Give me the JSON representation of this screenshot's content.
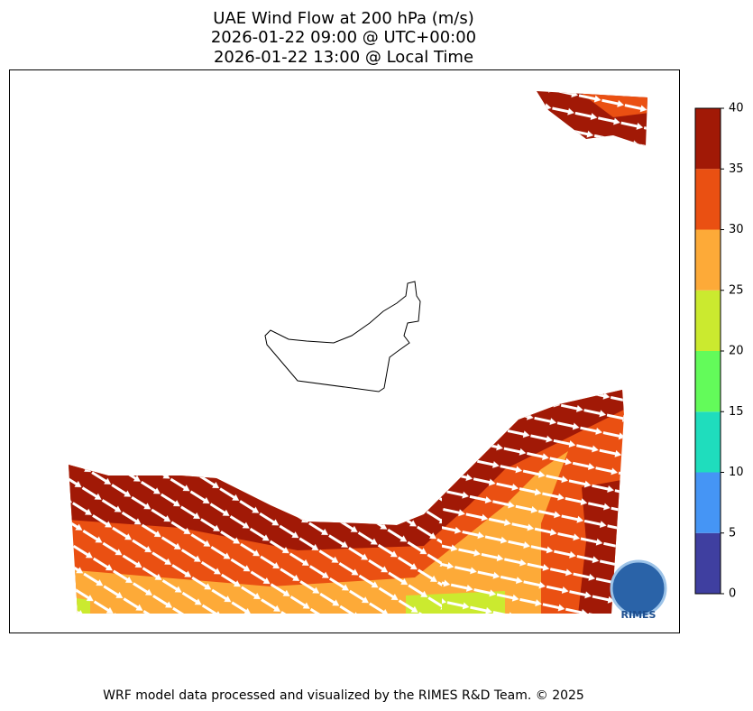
{
  "title": [
    "UAE Wind Flow at 200 hPa (m/s)",
    "2026-01-22 09:00 @ UTC+00:00",
    "2026-01-22 13:00 @ Local Time"
  ],
  "colorbar": {
    "lim": [
      0,
      40
    ],
    "ticks": [
      0,
      5,
      10,
      15,
      20,
      25,
      30,
      35,
      40
    ],
    "colors": [
      "#3f3fa0",
      "#4595f5",
      "#1fddbd",
      "#63fb5a",
      "#cbea2f",
      "#fdaa38",
      "#ea5012",
      "#a11906"
    ]
  },
  "logo": "RIMES",
  "footer": "WRF model data processed and visualized by the RIMES R&D Team. © 2025"
}
